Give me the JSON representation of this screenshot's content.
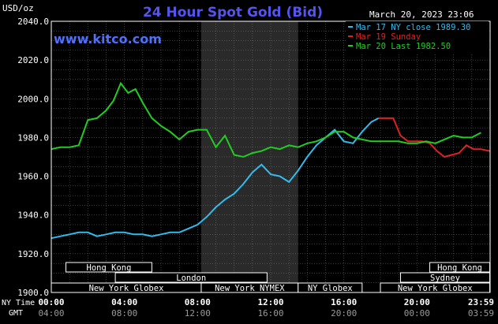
{
  "chart_data": {
    "type": "line",
    "title": "24 Hour Spot Gold (Bid)",
    "brand": "www.kitco.com",
    "timestamp": "March 20, 2023 23:06",
    "ylabel": "USD/oz",
    "ylim": [
      1900,
      2040
    ],
    "yticks": [
      "2040.0",
      "2020.0",
      "2000.0",
      "1980.0",
      "1960.0",
      "1940.0",
      "1920.0",
      "1900.0"
    ],
    "xlim": [
      0,
      24
    ],
    "x_row_labels": [
      "NY Time",
      "GMT"
    ],
    "xticks_ny": [
      "00:00",
      "04:00",
      "08:00",
      "12:00",
      "16:00",
      "20:00",
      "23:59"
    ],
    "xticks_gmt": [
      "04:00",
      "08:00",
      "12:00",
      "16:00",
      "20:00",
      "00:00",
      "03:59"
    ],
    "xticks_pos": [
      0,
      4,
      8,
      12,
      16,
      20,
      23.98
    ],
    "grid": true,
    "legend_position": "top-right",
    "shaded_region": [
      8.2,
      13.5
    ],
    "series": [
      {
        "name": "Mar 17 NY close 1989.30",
        "color": "#33bbee",
        "x": [
          0,
          0.5,
          1,
          1.5,
          2,
          2.5,
          3,
          3.5,
          4,
          4.5,
          5,
          5.5,
          6,
          6.5,
          7,
          7.5,
          8,
          8.5,
          9,
          9.5,
          10,
          10.5,
          11,
          11.5,
          12,
          12.5,
          13,
          13.5,
          14,
          14.5,
          15,
          15.5,
          16,
          16.5,
          17,
          17.5,
          17.9
        ],
        "y": [
          1928,
          1929,
          1930,
          1931,
          1931,
          1929,
          1930,
          1931,
          1931,
          1930,
          1930,
          1929,
          1930,
          1931,
          1931,
          1933,
          1935,
          1939,
          1944,
          1948,
          1951,
          1956,
          1962,
          1966,
          1961,
          1960,
          1957,
          1963,
          1970,
          1976,
          1980,
          1984,
          1978,
          1977,
          1983,
          1988,
          1990
        ]
      },
      {
        "name": "Mar 19 Sunday",
        "color": "#dd2222",
        "x": [
          17.9,
          18.3,
          18.7,
          19.1,
          19.5,
          19.9,
          20.3,
          20.7,
          21.1,
          21.5,
          21.9,
          22.3,
          22.7,
          23.1,
          23.5,
          23.98
        ],
        "y": [
          1990,
          1990,
          1990,
          1981,
          1978,
          1978,
          1978,
          1977,
          1973,
          1970,
          1971,
          1972,
          1976,
          1974,
          1974,
          1973
        ]
      },
      {
        "name": "Mar 20 Last 1982.50",
        "color": "#22cc22",
        "x": [
          0,
          0.5,
          1,
          1.5,
          2,
          2.5,
          3,
          3.4,
          3.8,
          4.2,
          4.6,
          5,
          5.5,
          6,
          6.5,
          7,
          7.5,
          8,
          8.5,
          9,
          9.5,
          10,
          10.5,
          11,
          11.5,
          12,
          12.5,
          13,
          13.5,
          14,
          14.5,
          15,
          15.5,
          16,
          16.5,
          17,
          17.5,
          18,
          18.5,
          19,
          19.5,
          20,
          20.5,
          21,
          21.5,
          22,
          22.5,
          23,
          23.5
        ],
        "y": [
          1974,
          1975,
          1975,
          1976,
          1989,
          1990,
          1994,
          1999,
          2008,
          2003,
          2005,
          1998,
          1990,
          1986,
          1983,
          1979,
          1983,
          1984,
          1984,
          1975,
          1981,
          1971,
          1970,
          1972,
          1973,
          1975,
          1974,
          1976,
          1975,
          1977,
          1978,
          1980,
          1983,
          1983,
          1980,
          1979,
          1978,
          1978,
          1978,
          1978,
          1977,
          1977,
          1978,
          1977,
          1979,
          1981,
          1980,
          1980,
          1982.5
        ]
      }
    ],
    "sessions": [
      {
        "name": "Hong Kong",
        "row": 0,
        "start": 0.8,
        "end": 5.5
      },
      {
        "name": "London",
        "row": 1,
        "start": 3.5,
        "end": 11.8
      },
      {
        "name": "New York Globex",
        "row": 2,
        "start": 0,
        "end": 8.2
      },
      {
        "name": "New York NYMEX",
        "row": 2,
        "start": 8.2,
        "end": 13.5
      },
      {
        "name": "NY Globex",
        "row": 2,
        "start": 13.5,
        "end": 17.0
      },
      {
        "name": "Hong Kong",
        "row": 0,
        "start": 20.7,
        "end": 23.98
      },
      {
        "name": "Sydney",
        "row": 1,
        "start": 19.1,
        "end": 23.98
      },
      {
        "name": "New York Globex",
        "row": 2,
        "start": 18.0,
        "end": 23.98
      }
    ]
  }
}
